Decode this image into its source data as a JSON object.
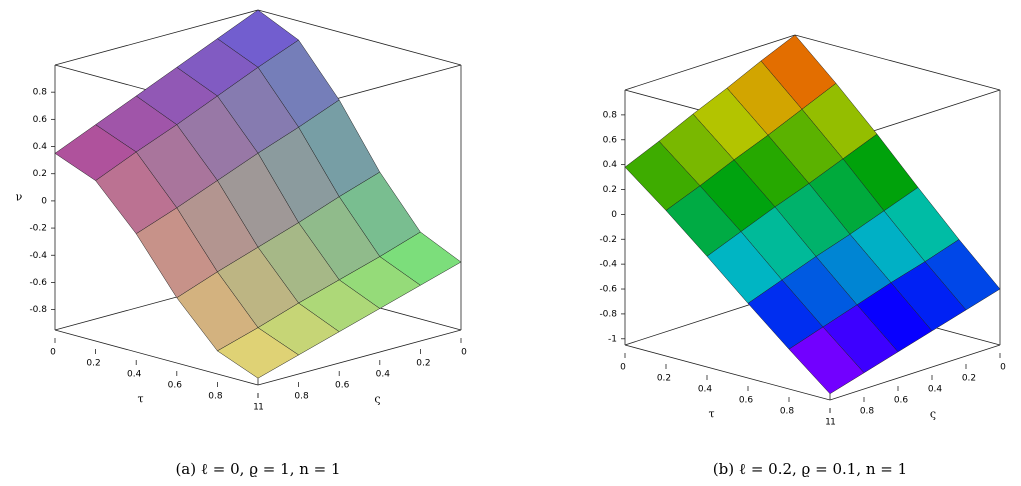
{
  "chart_data": [
    {
      "type": "surface",
      "caption": "(a) ℓ = 0, ϱ = 1, n = 1",
      "xlabel": "τ",
      "ylabel": "ς",
      "zlabel": "ν",
      "x": [
        0,
        0.2,
        0.4,
        0.6,
        0.8,
        1
      ],
      "y": [
        0,
        0.2,
        0.4,
        0.6,
        0.8,
        1
      ],
      "z": [
        [
          1.0,
          0.86,
          0.5,
          0.05,
          -0.31,
          -0.45
        ],
        [
          0.87,
          0.74,
          0.38,
          -0.05,
          -0.41,
          -0.54
        ],
        [
          0.74,
          0.61,
          0.27,
          -0.16,
          -0.5,
          -0.63
        ],
        [
          0.61,
          0.48,
          0.15,
          -0.26,
          -0.59,
          -0.72
        ],
        [
          0.48,
          0.36,
          0.03,
          -0.36,
          -0.69,
          -0.81
        ],
        [
          0.35,
          0.23,
          -0.08,
          -0.47,
          -0.78,
          -0.9
        ]
      ],
      "xlim": [
        0,
        1
      ],
      "ylim": [
        0,
        1
      ],
      "zlim": [
        -0.95,
        1.0
      ],
      "xticks": [
        0,
        0.2,
        0.4,
        0.6,
        0.8,
        1
      ],
      "yticks": [
        0,
        0.2,
        0.4,
        0.6,
        0.8,
        1
      ],
      "zticks": [
        0.8,
        0.6,
        0.4,
        0.2,
        0,
        -0.2,
        -0.4,
        -0.6,
        -0.8
      ],
      "color_mode": "corners",
      "corner_colors": [
        "#6a50e0",
        "#b0409a",
        "#f2e070",
        "#70f070"
      ]
    },
    {
      "type": "surface",
      "caption": "(b) ℓ = 0.2, ϱ = 0.1, n = 1",
      "xlabel": "τ",
      "ylabel": "ς",
      "x": [
        0,
        0.2,
        0.4,
        0.6,
        0.8,
        1
      ],
      "y": [
        0,
        0.2,
        0.4,
        0.6,
        0.8,
        1
      ],
      "z": [
        [
          1.0,
          0.7,
          0.38,
          0.04,
          -0.29,
          -0.6
        ],
        [
          0.88,
          0.58,
          0.27,
          -0.06,
          -0.38,
          -0.68
        ],
        [
          0.75,
          0.46,
          0.16,
          -0.16,
          -0.46,
          -0.76
        ],
        [
          0.63,
          0.35,
          0.06,
          -0.25,
          -0.55,
          -0.84
        ],
        [
          0.5,
          0.23,
          -0.05,
          -0.35,
          -0.64,
          -0.92
        ],
        [
          0.38,
          0.12,
          -0.16,
          -0.45,
          -0.73,
          -1.0
        ]
      ],
      "xlim": [
        0,
        1
      ],
      "ylim": [
        0,
        1
      ],
      "zlim": [
        -1.05,
        1.0
      ],
      "xticks": [
        0,
        0.2,
        0.4,
        0.6,
        0.8,
        1
      ],
      "yticks": [
        0,
        0.2,
        0.4,
        0.6,
        0.8,
        1
      ],
      "zticks": [
        0.8,
        0.6,
        0.4,
        0.2,
        0,
        -0.2,
        -0.4,
        -0.6,
        -0.8,
        -1
      ],
      "color_mode": "height",
      "colormap": [
        "#ff00ff",
        "#0000ff",
        "#00c0c0",
        "#00a000",
        "#c8c800",
        "#ff1000"
      ]
    }
  ]
}
